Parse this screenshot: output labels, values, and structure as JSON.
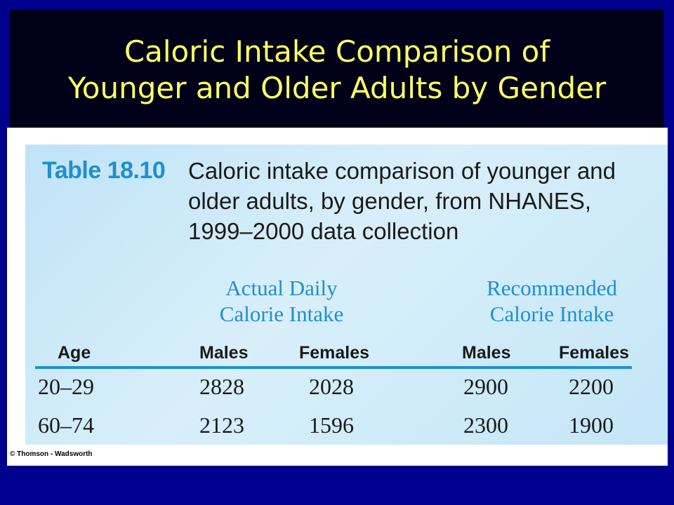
{
  "slide": {
    "title_lines": [
      "Caloric Intake Comparison of",
      "Younger and Older Adults by Gender"
    ]
  },
  "table": {
    "number": "Table 18.10",
    "caption_lines": [
      "Caloric intake comparison of younger and",
      "older adults, by gender, from NHANES,",
      "1999–2000 data collection"
    ],
    "groups": {
      "actual": [
        "Actual Daily",
        "Calorie Intake"
      ],
      "recommended": [
        "Recommended",
        "Calorie Intake"
      ]
    },
    "columns": [
      "Age",
      "Males",
      "Females",
      "Males",
      "Females"
    ],
    "rows": [
      [
        "20–29",
        "2828",
        "2028",
        "2900",
        "2200"
      ],
      [
        "60–74",
        "2123",
        "1596",
        "2300",
        "1900"
      ]
    ]
  },
  "footer": {
    "credit": "© Thomson - Wadsworth"
  },
  "colors": {
    "slide_background": "#00008e",
    "title_text": "#ffff66",
    "table_accent": "#1f8fd0"
  }
}
